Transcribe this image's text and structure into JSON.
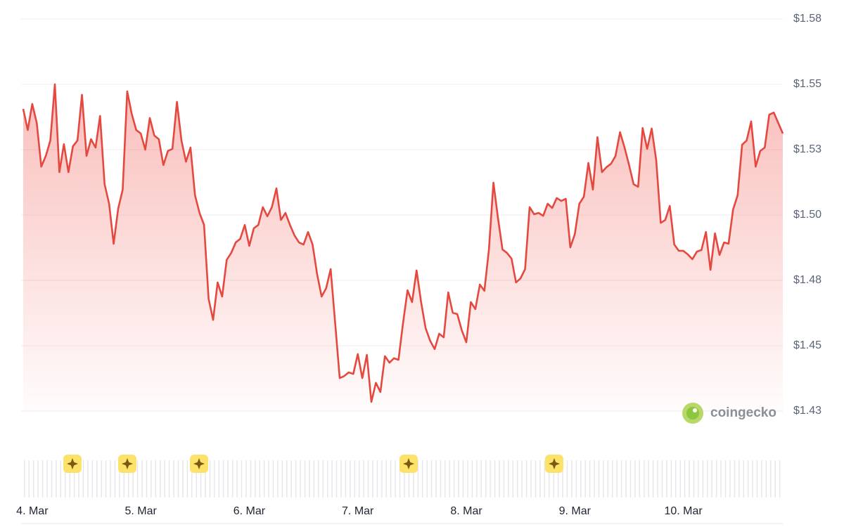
{
  "chart_data": {
    "type": "line",
    "x": [
      0,
      1,
      2,
      3,
      4,
      5,
      6,
      7,
      8,
      9,
      10,
      11,
      12,
      13,
      14,
      15,
      16,
      17,
      18,
      19,
      20,
      21,
      22,
      23,
      24,
      25,
      26,
      27,
      28,
      29,
      30,
      31,
      32,
      33,
      34,
      35,
      36,
      37,
      38,
      39,
      40,
      41,
      42,
      43,
      44,
      45,
      46,
      47,
      48,
      49,
      50,
      51,
      52,
      53,
      54,
      55,
      56,
      57,
      58,
      59,
      60,
      61,
      62,
      63,
      64,
      65,
      66,
      67,
      68,
      69,
      70,
      71,
      72,
      73,
      74,
      75,
      76,
      77,
      78,
      79,
      80,
      81,
      82,
      83,
      84,
      85,
      86,
      87,
      88,
      89,
      90,
      91,
      92,
      93,
      94,
      95,
      96,
      97,
      98,
      99,
      100,
      101,
      102,
      103,
      104,
      105,
      106,
      107,
      108,
      109,
      110,
      111,
      112,
      113,
      114,
      115,
      116,
      117,
      118,
      119,
      120,
      121,
      122,
      123,
      124,
      125,
      126,
      127,
      128,
      129,
      130,
      131,
      132,
      133,
      134,
      135,
      136,
      137,
      138,
      139,
      140,
      141,
      142,
      143,
      144,
      145,
      146,
      147,
      148,
      149,
      150,
      151,
      152,
      153,
      154,
      155,
      156,
      157,
      158,
      159,
      160,
      161,
      162,
      163,
      164,
      165,
      166,
      167,
      168
    ],
    "series": [
      {
        "color": "#e5483f",
        "values": [
          1.5406,
          1.5325,
          1.5425,
          1.5352,
          1.5185,
          1.5226,
          1.5285,
          1.55,
          1.5164,
          1.5271,
          1.5164,
          1.5263,
          1.5285,
          1.546,
          1.5226,
          1.529,
          1.5258,
          1.5379,
          1.5118,
          1.5043,
          1.489,
          1.5024,
          1.5097,
          1.5473,
          1.5387,
          1.5325,
          1.5312,
          1.525,
          1.5371,
          1.5304,
          1.529,
          1.5191,
          1.5245,
          1.5253,
          1.5433,
          1.5285,
          1.5204,
          1.5258,
          1.5075,
          1.5008,
          1.4962,
          1.468,
          1.4599,
          1.4742,
          1.4688,
          1.4828,
          1.4855,
          1.4895,
          1.4909,
          1.4962,
          1.4882,
          1.4949,
          1.4962,
          1.503,
          1.4995,
          1.503,
          1.5102,
          1.4981,
          1.5008,
          1.4962,
          1.4922,
          1.4895,
          1.4887,
          1.4935,
          1.4887,
          1.4774,
          1.4688,
          1.472,
          1.4793,
          1.4586,
          1.4376,
          1.4384,
          1.4398,
          1.4392,
          1.4468,
          1.4376,
          1.4465,
          1.4285,
          1.4358,
          1.4323,
          1.446,
          1.4435,
          1.4452,
          1.4446,
          1.4586,
          1.4712,
          1.4667,
          1.4788,
          1.4667,
          1.4567,
          1.4519,
          1.4487,
          1.4546,
          1.4532,
          1.4704,
          1.4626,
          1.4621,
          1.4559,
          1.4513,
          1.4667,
          1.464,
          1.4734,
          1.471,
          1.4868,
          1.5124,
          1.4989,
          1.4868,
          1.4855,
          1.4833,
          1.4742,
          1.4758,
          1.4793,
          1.503,
          1.5003,
          1.5008,
          1.4997,
          1.5043,
          1.5027,
          1.5065,
          1.5054,
          1.5062,
          1.4876,
          1.4927,
          1.5043,
          1.507,
          1.5199,
          1.5097,
          1.5298,
          1.5164,
          1.5183,
          1.5196,
          1.5226,
          1.5317,
          1.5258,
          1.5191,
          1.5118,
          1.5108,
          1.5333,
          1.5253,
          1.5331,
          1.521,
          1.497,
          1.4981,
          1.5035,
          1.4887,
          1.4863,
          1.4863,
          1.4849,
          1.4831,
          1.486,
          1.4866,
          1.4935,
          1.479,
          1.493,
          1.4847,
          1.4895,
          1.489,
          1.5021,
          1.5075,
          1.5269,
          1.5285,
          1.5358,
          1.5185,
          1.5245,
          1.5258,
          1.5384,
          1.5392,
          1.5352,
          1.5312
        ]
      }
    ],
    "xlim": [
      0,
      168
    ],
    "xticks": [
      {
        "value": 2,
        "label": "4. Mar"
      },
      {
        "value": 26,
        "label": "5. Mar"
      },
      {
        "value": 50,
        "label": "6. Mar"
      },
      {
        "value": 74,
        "label": "7. Mar"
      },
      {
        "value": 98,
        "label": "8. Mar"
      },
      {
        "value": 122,
        "label": "9. Mar"
      },
      {
        "value": 146,
        "label": "10. Mar"
      }
    ],
    "ylim": [
      1.425,
      1.575
    ],
    "yticks": [
      {
        "value": 1.575,
        "label": "$1.58"
      },
      {
        "value": 1.55,
        "label": "$1.55"
      },
      {
        "value": 1.525,
        "label": "$1.53"
      },
      {
        "value": 1.5,
        "label": "$1.50"
      },
      {
        "value": 1.475,
        "label": "$1.48"
      },
      {
        "value": 1.45,
        "label": "$1.45"
      },
      {
        "value": 1.425,
        "label": "$1.43"
      }
    ],
    "grid": true,
    "watermark": "coingecko"
  }
}
